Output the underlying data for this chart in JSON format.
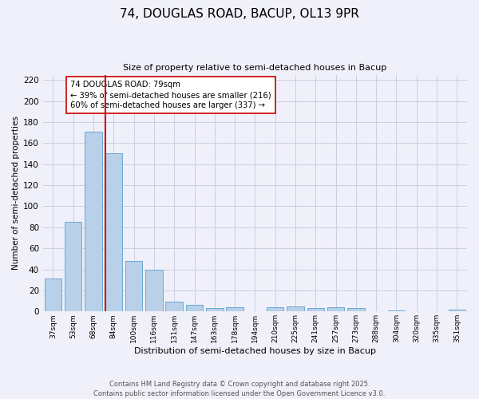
{
  "title": "74, DOUGLAS ROAD, BACUP, OL13 9PR",
  "subtitle": "Size of property relative to semi-detached houses in Bacup",
  "xlabel": "Distribution of semi-detached houses by size in Bacup",
  "ylabel": "Number of semi-detached properties",
  "categories": [
    "37sqm",
    "53sqm",
    "68sqm",
    "84sqm",
    "100sqm",
    "116sqm",
    "131sqm",
    "147sqm",
    "163sqm",
    "178sqm",
    "194sqm",
    "210sqm",
    "225sqm",
    "241sqm",
    "257sqm",
    "273sqm",
    "288sqm",
    "304sqm",
    "320sqm",
    "335sqm",
    "351sqm"
  ],
  "values": [
    31,
    85,
    171,
    150,
    48,
    40,
    9,
    6,
    3,
    4,
    0,
    4,
    5,
    3,
    4,
    3,
    0,
    1,
    0,
    0,
    2
  ],
  "bar_color": "#b8d0e8",
  "bar_edgecolor": "#6aaad4",
  "vline_color": "#cc0000",
  "annotation_text": "74 DOUGLAS ROAD: 79sqm\n← 39% of semi-detached houses are smaller (216)\n60% of semi-detached houses are larger (337) →",
  "annotation_box_edgecolor": "#cc0000",
  "annotation_box_facecolor": "#ffffff",
  "ylim": [
    0,
    225
  ],
  "yticks": [
    0,
    20,
    40,
    60,
    80,
    100,
    120,
    140,
    160,
    180,
    200,
    220
  ],
  "footer_text": "Contains HM Land Registry data © Crown copyright and database right 2025.\nContains public sector information licensed under the Open Government Licence v3.0.",
  "bg_color": "#f0f0fa",
  "grid_color": "#c8d0e0"
}
